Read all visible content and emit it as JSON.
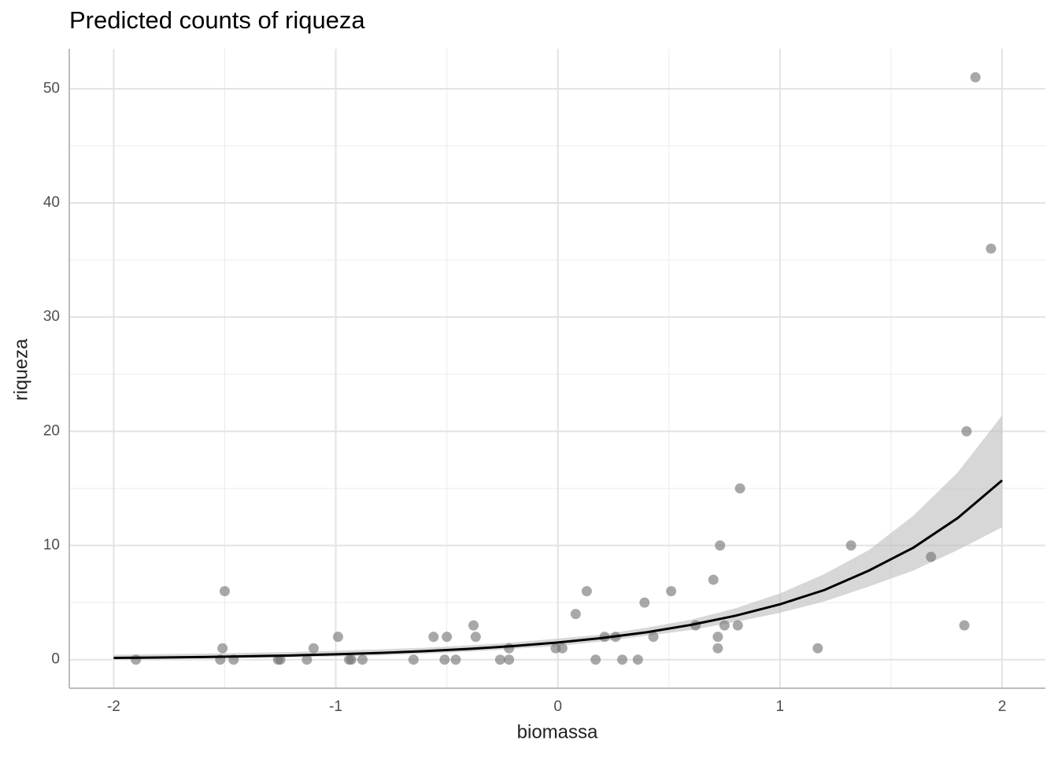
{
  "chart_data": {
    "type": "scatter",
    "title": "Predicted counts of riqueza",
    "x_label": "biomassa",
    "y_label": "riqueza",
    "xlim": [
      -2.2,
      2.195
    ],
    "ylim": [
      -2.5,
      53.5
    ],
    "xticks": [
      -2,
      -1,
      0,
      1,
      2
    ],
    "yticks": [
      0,
      10,
      20,
      30,
      40,
      50
    ],
    "grid": true,
    "point_color": "#6e6e6e",
    "line_color": "#000000",
    "band_color": "#bdbdbd",
    "points": {
      "x": [
        -1.9,
        -1.5,
        -1.51,
        -1.52,
        -1.46,
        -1.26,
        -1.25,
        -1.13,
        -1.1,
        -0.99,
        -0.94,
        -0.93,
        -0.88,
        -0.65,
        -0.56,
        -0.51,
        -0.5,
        -0.46,
        -0.38,
        -0.37,
        -0.26,
        -0.22,
        -0.22,
        -0.01,
        0.02,
        0.08,
        0.13,
        0.17,
        0.21,
        0.26,
        0.29,
        0.36,
        0.39,
        0.43,
        0.51,
        0.62,
        0.7,
        0.72,
        0.72,
        0.73,
        0.75,
        0.81,
        0.82,
        1.17,
        1.32,
        1.68,
        1.83,
        1.84,
        1.88,
        1.95
      ],
      "values": [
        0,
        6,
        1,
        0,
        0,
        0,
        0,
        0,
        1,
        2,
        0,
        0,
        0,
        0,
        2,
        0,
        2,
        0,
        3,
        2,
        0,
        1,
        0,
        1,
        1,
        4,
        6,
        0,
        2,
        2,
        0,
        0,
        5,
        2,
        6,
        3,
        7,
        1,
        2,
        10,
        3,
        3,
        15,
        1,
        10,
        9,
        3,
        20,
        51,
        36
      ]
    },
    "fit": {
      "x": [
        -2,
        -1.8,
        -1.6,
        -1.4,
        -1.2,
        -1,
        -0.8,
        -0.6,
        -0.4,
        -0.2,
        0,
        0.2,
        0.4,
        0.6,
        0.8,
        1,
        1.2,
        1.4,
        1.6,
        1.8,
        2
      ],
      "values": [
        0.15,
        0.19,
        0.23,
        0.3,
        0.37,
        0.47,
        0.59,
        0.75,
        0.94,
        1.19,
        1.5,
        1.9,
        2.4,
        3.05,
        3.85,
        4.85,
        6.1,
        7.8,
        9.8,
        12.4,
        15.7
      ],
      "lower": [
        0.05,
        0.07,
        0.1,
        0.14,
        0.2,
        0.28,
        0.38,
        0.52,
        0.7,
        0.95,
        1.2,
        1.6,
        2.1,
        2.6,
        3.3,
        4.1,
        5.1,
        6.4,
        7.8,
        9.6,
        11.6
      ],
      "upper": [
        0.43,
        0.48,
        0.53,
        0.6,
        0.68,
        0.78,
        0.9,
        1.05,
        1.25,
        1.5,
        1.85,
        2.2,
        2.8,
        3.5,
        4.5,
        5.8,
        7.5,
        9.6,
        12.6,
        16.4,
        21.4
      ]
    }
  }
}
